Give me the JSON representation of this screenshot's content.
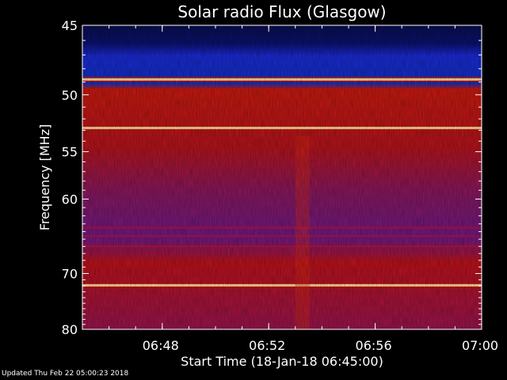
{
  "chart_data": {
    "type": "heatmap",
    "title": "Solar radio Flux (Glasgow)",
    "xlabel": "Start Time (18-Jan-18 06:45:00)",
    "ylabel": "Frequency [MHz]",
    "x_ticks": [
      "06:48",
      "06:52",
      "06:56",
      "07:00"
    ],
    "y_ticks": [
      "45",
      "50",
      "55",
      "60",
      "70",
      "80"
    ],
    "xlim": [
      "06:45",
      "07:00"
    ],
    "ylim": [
      45,
      80
    ],
    "colors": {
      "low": "#0a1a60",
      "mid": "#6a1aa0",
      "high": "#cc1010",
      "peak": "#ffe6a0"
    },
    "bright_bands_mhz": [
      48.8,
      52.8,
      71.9
    ],
    "blue_band_mhz": [
      45,
      52.5
    ]
  },
  "footer": "Updated Thu Feb 22 05:00:23 2018"
}
